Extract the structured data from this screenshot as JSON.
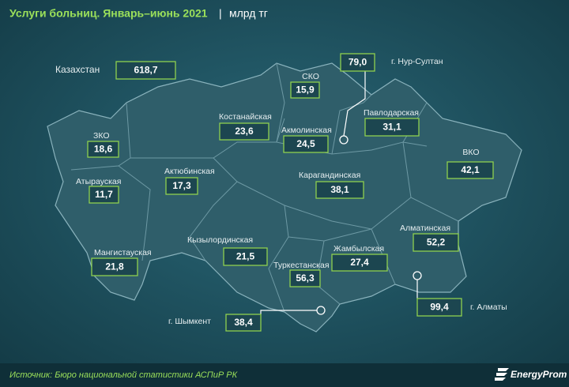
{
  "header": {
    "title": "Услуги больниц. Январь–июнь 2021",
    "separator": "|",
    "unit": "млрд тг"
  },
  "total": {
    "name": "Казахстан",
    "value": "618,7"
  },
  "regions": [
    {
      "name": "СКО",
      "value": "15,9"
    },
    {
      "name": "г. Нур-Султан",
      "value": "79,0"
    },
    {
      "name": "Костанайская",
      "value": "23,6"
    },
    {
      "name": "Акмолинская",
      "value": "24,5"
    },
    {
      "name": "Павлодарская",
      "value": "31,1"
    },
    {
      "name": "ЗКО",
      "value": "18,6"
    },
    {
      "name": "ВКО",
      "value": "42,1"
    },
    {
      "name": "Актюбинская",
      "value": "17,3"
    },
    {
      "name": "Атырауская",
      "value": "11,7"
    },
    {
      "name": "Карагандинская",
      "value": "38,1"
    },
    {
      "name": "Алматинская",
      "value": "52,2"
    },
    {
      "name": "Кызылординская",
      "value": "21,5"
    },
    {
      "name": "Мангистауская",
      "value": "21,8"
    },
    {
      "name": "Жамбылская",
      "value": "27,4"
    },
    {
      "name": "Туркестанская",
      "value": "56,3"
    },
    {
      "name": "г. Алматы",
      "value": "99,4"
    },
    {
      "name": "г. Шымкент",
      "value": "38,4"
    }
  ],
  "footer": {
    "source": "Источник: Бюро национальной статистики АСПиР РК",
    "logo": "EnergyProm"
  }
}
